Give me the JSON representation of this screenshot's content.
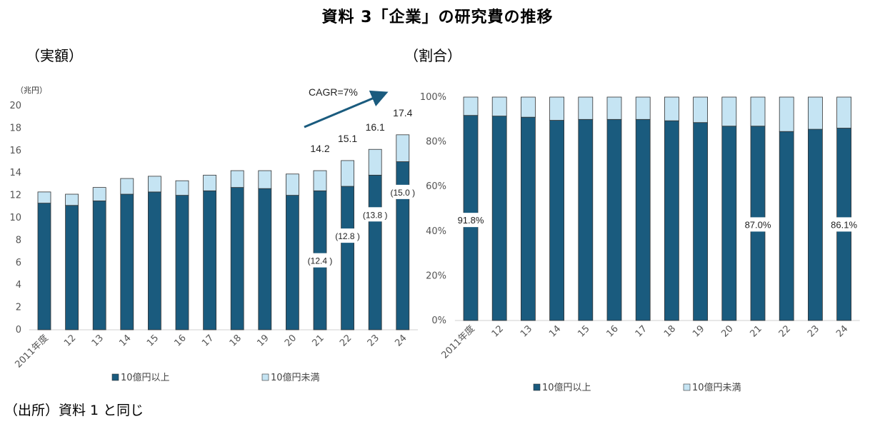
{
  "title": "資料 3「企業」の研究費の推移",
  "source": "（出所）資料 1 と同じ",
  "colors": {
    "large": "#1a5b7e",
    "small": "#c5e4f3",
    "arrow": "#1a5b7e"
  },
  "chart_data": [
    {
      "type": "bar",
      "stacked": true,
      "panel_title": "（実額）",
      "unit_label": "（兆円）",
      "categories": [
        "2011年度",
        "12",
        "13",
        "14",
        "15",
        "16",
        "17",
        "18",
        "19",
        "20",
        "21",
        "22",
        "23",
        "24"
      ],
      "series": [
        {
          "name": "10億円以上",
          "values": [
            11.3,
            11.1,
            11.5,
            12.1,
            12.3,
            12.0,
            12.4,
            12.7,
            12.6,
            12.0,
            12.4,
            12.8,
            13.8,
            15.0
          ]
        },
        {
          "name": "10億円未満",
          "values": [
            1.0,
            1.0,
            1.2,
            1.4,
            1.4,
            1.3,
            1.4,
            1.5,
            1.6,
            1.9,
            1.8,
            2.3,
            2.3,
            2.4
          ]
        }
      ],
      "ylim": [
        0,
        20
      ],
      "yticks": [
        0,
        2,
        4,
        6,
        8,
        10,
        12,
        14,
        16,
        18,
        20
      ],
      "total_labels": [
        {
          "index": 10,
          "text": "14.2"
        },
        {
          "index": 11,
          "text": "15.1"
        },
        {
          "index": 12,
          "text": "16.1"
        },
        {
          "index": 13,
          "text": "17.4"
        }
      ],
      "value_labels": [
        {
          "index": 10,
          "text": "(12.4 )",
          "y": 6.2
        },
        {
          "index": 11,
          "text": "(12.8 )",
          "y": 8.4
        },
        {
          "index": 12,
          "text": "(13.8 )",
          "y": 10.3
        },
        {
          "index": 13,
          "text": "(15.0 )",
          "y": 12.3
        }
      ],
      "annotation": "CAGR=7%",
      "legend": [
        "10億円以上",
        "10億円未満"
      ]
    },
    {
      "type": "bar",
      "stacked": true,
      "percent": true,
      "panel_title": "（割合）",
      "categories": [
        "2011年度",
        "12",
        "13",
        "14",
        "15",
        "16",
        "17",
        "18",
        "19",
        "20",
        "21",
        "22",
        "23",
        "24"
      ],
      "series": [
        {
          "name": "10億円以上",
          "values": [
            91.8,
            91.5,
            91.0,
            89.6,
            90.0,
            90.0,
            90.0,
            89.4,
            88.6,
            87.0,
            87.0,
            84.6,
            85.6,
            86.1
          ]
        },
        {
          "name": "10億円未満",
          "values": [
            8.2,
            8.5,
            9.0,
            10.4,
            10.0,
            10.0,
            10.0,
            10.6,
            11.4,
            13.0,
            13.0,
            15.4,
            14.4,
            13.9
          ]
        }
      ],
      "ylim": [
        0,
        100
      ],
      "yticks": [
        "0%",
        "20%",
        "40%",
        "60%",
        "80%",
        "100%"
      ],
      "value_labels": [
        {
          "index": 0,
          "text": "91.8%",
          "y": 45
        },
        {
          "index": 10,
          "text": "87.0%",
          "y": 43
        },
        {
          "index": 13,
          "text": "86.1%",
          "y": 43
        }
      ],
      "legend": [
        "10億円以上",
        "10億円未満"
      ]
    }
  ]
}
